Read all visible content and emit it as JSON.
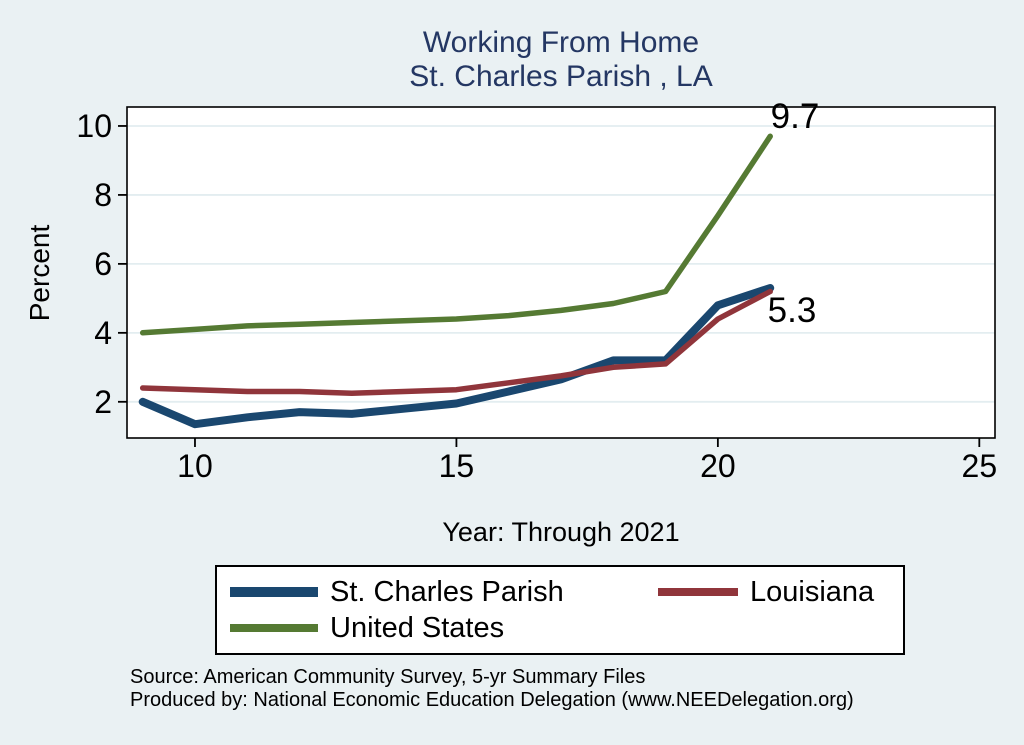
{
  "title": {
    "line1": "Working From Home",
    "line2": "St. Charles Parish , LA"
  },
  "chart_data": {
    "type": "line",
    "title": "Working From Home St. Charles Parish , LA",
    "xlabel": "Year: Through 2021",
    "ylabel": "Percent",
    "x": [
      9,
      10,
      11,
      12,
      13,
      14,
      15,
      16,
      17,
      18,
      19,
      20,
      21
    ],
    "x_ticks": [
      10,
      15,
      20,
      25
    ],
    "y_ticks": [
      2,
      4,
      6,
      8,
      10
    ],
    "xlim": [
      8.7,
      25.3
    ],
    "ylim": [
      0.95,
      10.55
    ],
    "grid": "horizontal",
    "legend_position": "bottom",
    "series": [
      {
        "name": "St. Charles Parish",
        "color": "#1a476f",
        "stroke_width": 8,
        "values": [
          2.0,
          1.35,
          1.55,
          1.7,
          1.65,
          1.8,
          1.95,
          2.3,
          2.65,
          3.2,
          3.2,
          4.8,
          5.3
        ],
        "end_label": "5.3"
      },
      {
        "name": "Louisiana",
        "color": "#90353b",
        "stroke_width": 5.5,
        "values": [
          2.4,
          2.35,
          2.3,
          2.3,
          2.25,
          2.3,
          2.35,
          2.55,
          2.75,
          3.0,
          3.1,
          4.4,
          5.2
        ],
        "end_label": ""
      },
      {
        "name": "United States",
        "color": "#557a33",
        "stroke_width": 5.5,
        "values": [
          4.0,
          4.1,
          4.2,
          4.25,
          4.3,
          4.35,
          4.4,
          4.5,
          4.65,
          4.85,
          5.2,
          7.4,
          9.7
        ],
        "end_label": "9.7"
      }
    ]
  },
  "source": {
    "line1": "Source: American Community Survey, 5-yr Summary Files",
    "line2": "Produced by: National Economic Education Delegation (www.NEEDelegation.org)"
  },
  "colors": {
    "background": "#eaf1f3",
    "plot_background": "#ffffff",
    "grid": "#e3edf0",
    "frame": "#000000",
    "title_text": "#243763",
    "axis_text": "#000000"
  }
}
